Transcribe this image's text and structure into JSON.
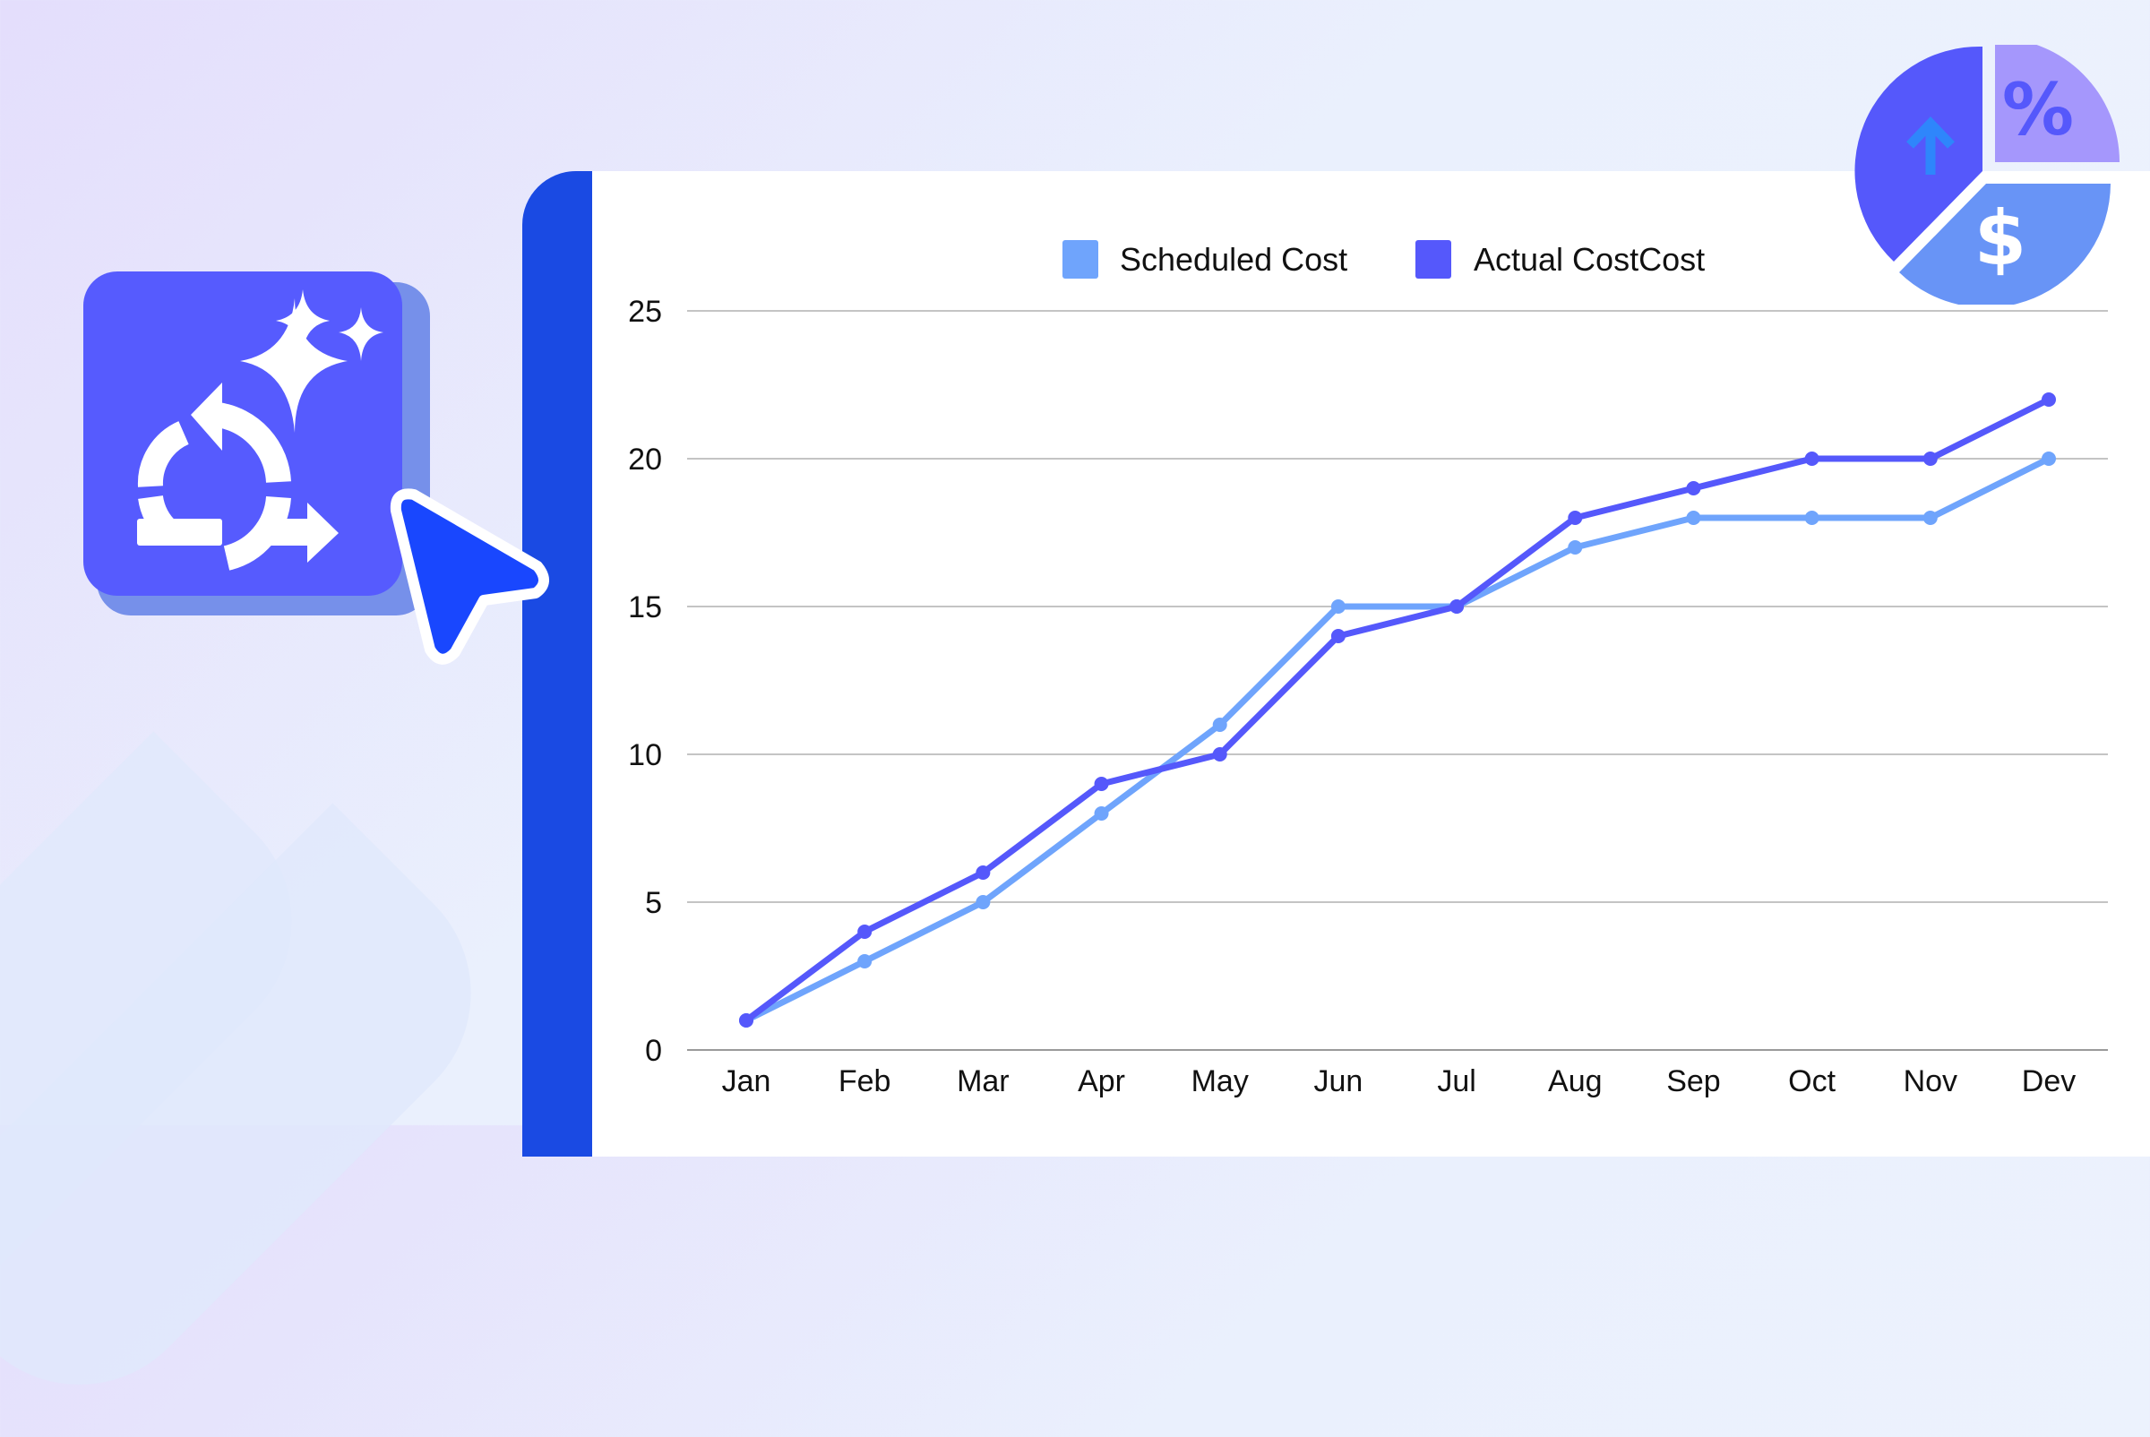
{
  "colors": {
    "scheduled": "#6fa4fc",
    "actual": "#5558fb",
    "grid": "#c4c4c4",
    "accent_bar": "#1a4ae3"
  },
  "icons": [
    "agile-cycle-sparkle-icon",
    "mouse-cursor-icon",
    "pie-percent-dollar-icon"
  ],
  "chart_data": {
    "type": "line",
    "categories": [
      "Jan",
      "Feb",
      "Mar",
      "Apr",
      "May",
      "Jun",
      "Jul",
      "Aug",
      "Sep",
      "Oct",
      "Nov",
      "Dev"
    ],
    "series": [
      {
        "name": "Scheduled Cost",
        "color": "#6fa4fc",
        "values": [
          1,
          3,
          5,
          8,
          11,
          15,
          15,
          17,
          18,
          18,
          18,
          20
        ]
      },
      {
        "name": "Actual CostCost",
        "color": "#5558fb",
        "values": [
          1,
          4,
          6,
          9,
          10,
          14,
          15,
          18,
          19,
          20,
          20,
          22
        ]
      }
    ],
    "yticks": [
      "0",
      "5",
      "10",
      "15",
      "20",
      "25"
    ],
    "ylim": [
      0,
      25
    ],
    "grid": true,
    "legend": "top-center"
  }
}
